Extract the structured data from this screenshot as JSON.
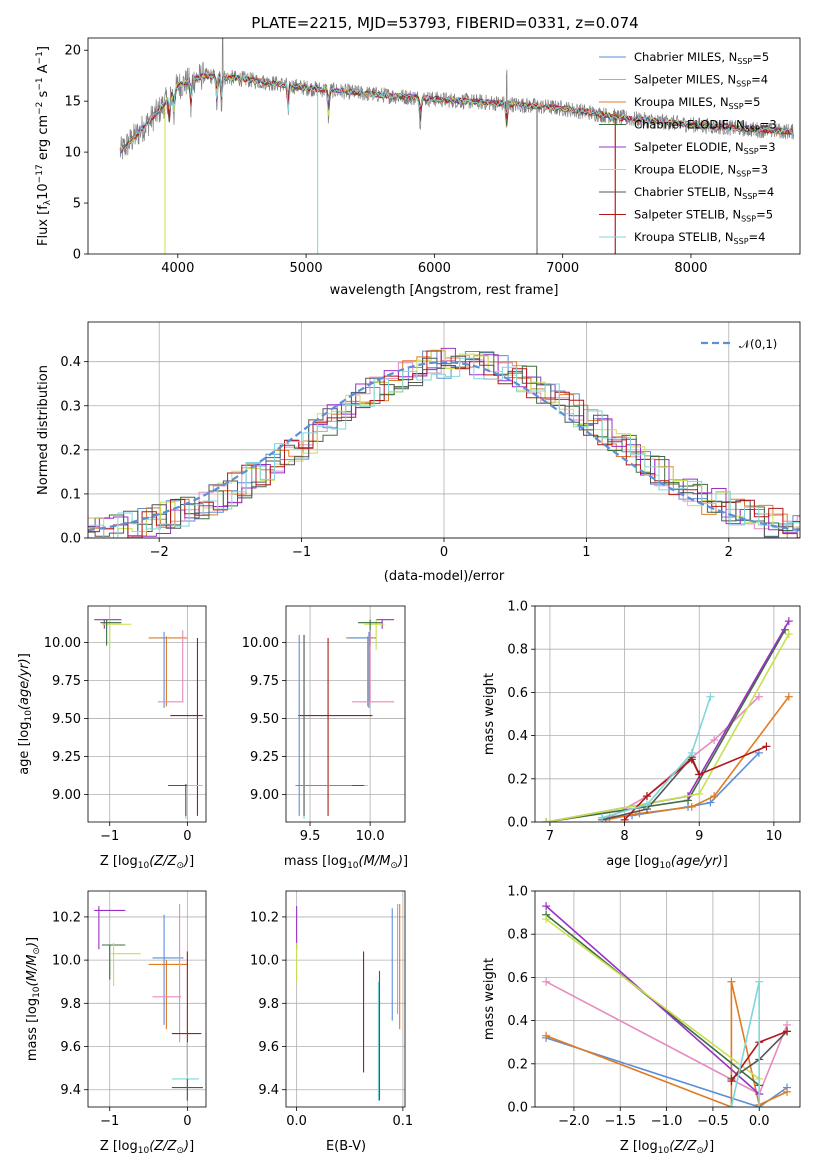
{
  "figure": {
    "title": "PLATE=2215, MJD=53793, FIBERID=0331, z=0.074"
  },
  "models": [
    {
      "name": "Chabrier MILES",
      "nssp": "5",
      "color": "#5b8fd9"
    },
    {
      "name": "Salpeter MILES",
      "nssp": "4",
      "color": "#e58cc0"
    },
    {
      "name": "Kroupa MILES",
      "nssp": "5",
      "color": "#e07b23"
    },
    {
      "name": "Chabrier ELODIE",
      "nssp": "3",
      "color": "#3d6e3d"
    },
    {
      "name": "Salpeter ELODIE",
      "nssp": "3",
      "color": "#9b30c8"
    },
    {
      "name": "Kroupa ELODIE",
      "nssp": "3",
      "color": "#c8e050"
    },
    {
      "name": "Chabrier STELIB",
      "nssp": "4",
      "color": "#555555"
    },
    {
      "name": "Salpeter STELIB",
      "nssp": "5",
      "color": "#b01818"
    },
    {
      "name": "Kroupa STELIB",
      "nssp": "4",
      "color": "#7fd6dc"
    }
  ],
  "chart_data": [
    {
      "id": "spectrum",
      "type": "line",
      "xlabel": "wavelength [Angstrom, rest frame]",
      "ylabel": "Flux [f_λ 10^-17 erg cm^-2 s^-1 A^-1]",
      "xlim": [
        3300,
        8850
      ],
      "ylim": [
        0,
        21.2
      ],
      "xticks": [
        4000,
        5000,
        6000,
        7000,
        8000
      ],
      "yticks": [
        0,
        5,
        10,
        15,
        20
      ],
      "continuum": [
        [
          3550,
          10
        ],
        [
          3700,
          12
        ],
        [
          3850,
          14
        ],
        [
          4000,
          16.5
        ],
        [
          4200,
          17.5
        ],
        [
          4500,
          17.2
        ],
        [
          5000,
          16.3
        ],
        [
          5500,
          15.7
        ],
        [
          6000,
          15.2
        ],
        [
          6500,
          14.8
        ],
        [
          7000,
          14.3
        ],
        [
          7500,
          13.3
        ],
        [
          8000,
          12.7
        ],
        [
          8500,
          12.2
        ],
        [
          8800,
          12
        ]
      ],
      "absorption_lines": [
        3934,
        3969,
        4102,
        4304,
        4341,
        4861,
        5175,
        5890,
        6563
      ],
      "grid": false,
      "legend": "upper right"
    },
    {
      "id": "residuals",
      "type": "line",
      "xlabel": "(data-model)/error",
      "ylabel": "Normed distribution",
      "xlim": [
        -2.5,
        2.5
      ],
      "ylim": [
        0,
        0.49
      ],
      "xticks": [
        -2,
        -1,
        0,
        1,
        2
      ],
      "yticks": [
        0.0,
        0.1,
        0.2,
        0.3,
        0.4
      ],
      "reference_curve": "N(0,1)",
      "legend_label": "𝒩(0,1)",
      "grid": true,
      "legend": "upper right"
    },
    {
      "id": "age-vs-metallicity",
      "type": "scatter",
      "xlabel": "Z [log10(Z/Z⊙)]",
      "ylabel": "age  [log10(age/yr)]",
      "xlim": [
        -1.28,
        0.24
      ],
      "ylim": [
        8.82,
        10.24
      ],
      "xticks": [
        -1,
        0
      ],
      "yticks": [
        9.0,
        9.25,
        9.5,
        9.75,
        10.0
      ],
      "grid": true
    },
    {
      "id": "age-vs-mass",
      "type": "scatter",
      "xlabel": "mass [log10(M/M⊙)]",
      "ylabel": "",
      "xlim": [
        9.3,
        10.29
      ],
      "ylim": [
        8.82,
        10.24
      ],
      "xticks": [
        9.5,
        10.0
      ],
      "yticks": [
        9.0,
        9.25,
        9.5,
        9.75,
        10.0
      ],
      "grid": true
    },
    {
      "id": "massweight-vs-age",
      "type": "line",
      "xlabel": "age  [log10(age/yr)]",
      "ylabel": "mass weight",
      "xlim": [
        6.8,
        10.35
      ],
      "ylim": [
        0,
        1.0
      ],
      "xticks": [
        7,
        8,
        9,
        10
      ],
      "yticks": [
        0.0,
        0.2,
        0.4,
        0.6,
        0.8,
        1.0
      ],
      "grid": true,
      "series": [
        {
          "model": 0,
          "x": [
            7.7,
            8.1,
            8.85,
            9.15,
            9.8
          ],
          "y": [
            0.02,
            0.03,
            0.07,
            0.09,
            0.32
          ]
        },
        {
          "model": 1,
          "x": [
            7.8,
            8.3,
            8.9,
            9.2,
            9.8
          ],
          "y": [
            0.02,
            0.12,
            0.3,
            0.38,
            0.58
          ]
        },
        {
          "model": 2,
          "x": [
            7.75,
            8.2,
            8.9,
            9.2,
            10.2
          ],
          "y": [
            0.01,
            0.04,
            0.07,
            0.12,
            0.58
          ]
        },
        {
          "model": 3,
          "x": [
            6.95,
            8.85,
            10.15
          ],
          "y": [
            0.0,
            0.1,
            0.89
          ]
        },
        {
          "model": 4,
          "x": [
            6.95,
            8.85,
            10.2
          ],
          "y": [
            0.0,
            0.12,
            0.93
          ]
        },
        {
          "model": 5,
          "x": [
            6.95,
            9.0,
            10.2
          ],
          "y": [
            0.0,
            0.13,
            0.87
          ]
        },
        {
          "model": 6,
          "x": [
            7.7,
            8.3,
            8.9,
            9.0
          ],
          "y": [
            0.01,
            0.06,
            0.3,
            0.22
          ]
        },
        {
          "model": 7,
          "x": [
            8.0,
            8.3,
            8.9,
            9.0,
            9.9
          ],
          "y": [
            0.01,
            0.12,
            0.29,
            0.22,
            0.35
          ]
        },
        {
          "model": 8,
          "x": [
            7.7,
            8.3,
            8.9,
            9.15
          ],
          "y": [
            0.02,
            0.08,
            0.32,
            0.58
          ]
        }
      ]
    },
    {
      "id": "mass-vs-metallicity",
      "type": "scatter",
      "xlabel": "Z [log10(Z/Z⊙)]",
      "ylabel": "mass [log10(M/M⊙)]",
      "xlim": [
        -1.28,
        0.24
      ],
      "ylim": [
        9.32,
        10.32
      ],
      "xticks": [
        -1,
        0
      ],
      "yticks": [
        9.4,
        9.6,
        9.8,
        10.0,
        10.2
      ],
      "grid": true
    },
    {
      "id": "mass-vs-ebv",
      "type": "scatter",
      "xlabel": "E(B-V)",
      "ylabel": "",
      "xlim": [
        -0.01,
        0.102
      ],
      "ylim": [
        9.32,
        10.32
      ],
      "xticks": [
        0.0,
        0.1
      ],
      "yticks": [
        9.4,
        9.6,
        9.8,
        10.0,
        10.2
      ],
      "grid": true
    },
    {
      "id": "massweight-vs-metallicity",
      "type": "line",
      "xlabel": "Z [log10(Z/Z⊙)]",
      "ylabel": "mass weight",
      "xlim": [
        -2.42,
        0.44
      ],
      "ylim": [
        0,
        1.0
      ],
      "xticks": [
        -2.0,
        -1.5,
        -1.0,
        -0.5,
        0.0
      ],
      "yticks": [
        0.0,
        0.2,
        0.4,
        0.6,
        0.8,
        1.0
      ],
      "grid": true,
      "series": [
        {
          "model": 0,
          "x": [
            -2.3,
            0.0,
            0.3
          ],
          "y": [
            0.32,
            0.0,
            0.09
          ]
        },
        {
          "model": 1,
          "x": [
            -2.3,
            0.0,
            0.3
          ],
          "y": [
            0.58,
            0.06,
            0.38
          ]
        },
        {
          "model": 2,
          "x": [
            -2.3,
            -0.3,
            -0.3,
            0.0,
            0.3
          ],
          "y": [
            0.33,
            0.0,
            0.58,
            0.01,
            0.07
          ]
        },
        {
          "model": 3,
          "x": [
            -2.3,
            0.0
          ],
          "y": [
            0.89,
            0.1
          ]
        },
        {
          "model": 4,
          "x": [
            -2.3,
            0.0
          ],
          "y": [
            0.93,
            0.06
          ]
        },
        {
          "model": 5,
          "x": [
            -2.3,
            0.0
          ],
          "y": [
            0.87,
            0.13
          ]
        },
        {
          "model": 6,
          "x": [
            -0.3,
            0.0,
            0.3
          ],
          "y": [
            0.13,
            0.22,
            0.35
          ]
        },
        {
          "model": 7,
          "x": [
            -0.3,
            0.0,
            0.3
          ],
          "y": [
            0.12,
            0.3,
            0.35
          ]
        },
        {
          "model": 8,
          "x": [
            -0.3,
            0.0,
            0.0
          ],
          "y": [
            0.0,
            0.58,
            0.0
          ]
        }
      ]
    }
  ]
}
